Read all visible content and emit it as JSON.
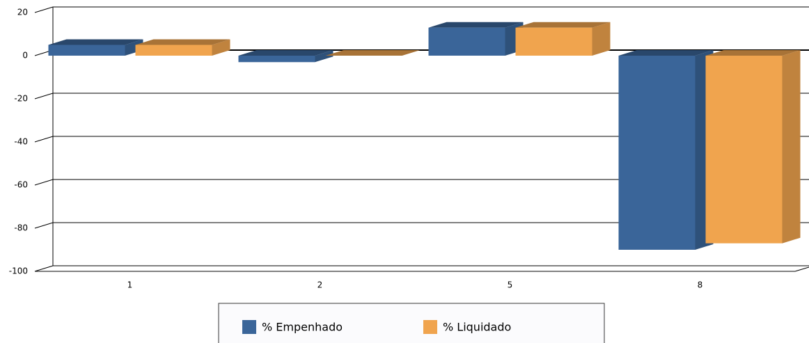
{
  "chart_data": {
    "type": "bar",
    "categories": [
      "1",
      "2",
      "5",
      "8"
    ],
    "series": [
      {
        "name": "% Empenhado",
        "color": "#3a6599",
        "values": [
          5,
          -3,
          13,
          -90
        ]
      },
      {
        "name": "% Liquidado",
        "color": "#f0a44e",
        "values": [
          5,
          0,
          13,
          -87
        ]
      }
    ],
    "ylim": [
      -100,
      20
    ],
    "yticks": [
      20,
      0,
      -20,
      -40,
      -60,
      -80,
      -100
    ],
    "grid": true
  }
}
